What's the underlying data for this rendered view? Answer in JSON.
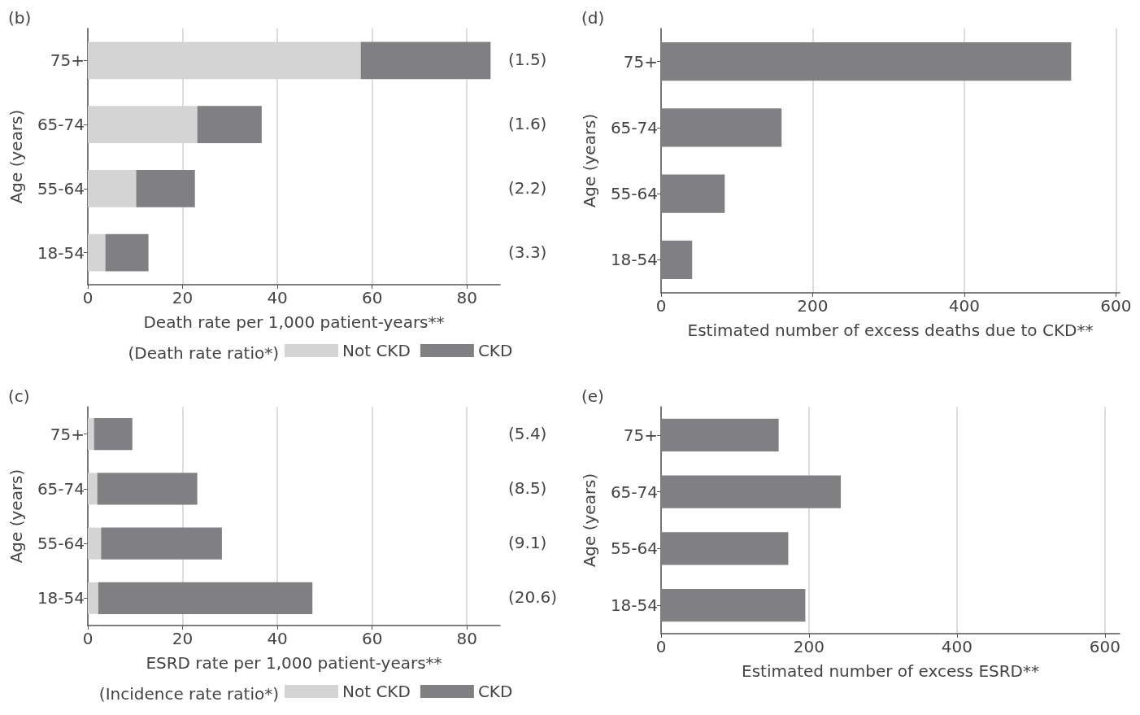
{
  "chart_data": [
    {
      "type": "bar",
      "title": "(b)",
      "orientation": "horizontal",
      "stacked": true,
      "categories": [
        "75+",
        "65-74",
        "55-64",
        "18-54"
      ],
      "series": [
        {
          "name": "Not CKD",
          "color": "#d4d4d5",
          "values": [
            57.6,
            23.1,
            10.2,
            3.7
          ]
        },
        {
          "name": "CKD",
          "color": "#808083",
          "values": [
            27.4,
            13.6,
            12.4,
            9.1
          ]
        }
      ],
      "xlim": [
        0,
        87
      ],
      "xticks": [
        0,
        20,
        40,
        60,
        80
      ],
      "grid": "x",
      "legend": "bottom",
      "legend_title": "(Death rate ratio*)",
      "xlabel": "Death rate per 1,000 patient-years**",
      "ylabel": "Age (years)",
      "annotations": [
        "(1.5)",
        "(1.6)",
        "(2.2)",
        "(3.3)"
      ]
    },
    {
      "type": "bar",
      "title": "(d)",
      "orientation": "horizontal",
      "categories": [
        "75+",
        "65-74",
        "55-64",
        "18-54"
      ],
      "series": [
        {
          "color": "#808083",
          "values": [
            541,
            159,
            84,
            41
          ]
        }
      ],
      "xlim": [
        0,
        605
      ],
      "xticks": [
        0,
        200,
        400,
        600
      ],
      "grid": "x",
      "xlabel": "Estimated number of excess deaths due to CKD**",
      "ylabel": "Age (years)"
    },
    {
      "type": "bar",
      "title": "(c)",
      "orientation": "horizontal",
      "stacked": true,
      "categories": [
        "75+",
        "65-74",
        "55-64",
        "18-54"
      ],
      "series": [
        {
          "name": "Not CKD",
          "color": "#d4d4d5",
          "values": [
            1.3,
            2.0,
            2.8,
            2.2
          ]
        },
        {
          "name": "CKD",
          "color": "#808083",
          "values": [
            8.1,
            21.1,
            25.5,
            45.2
          ]
        }
      ],
      "xlim": [
        0,
        87
      ],
      "xticks": [
        0,
        20,
        40,
        60,
        80
      ],
      "grid": "x",
      "legend": "bottom",
      "legend_title": "(Incidence rate ratio*)",
      "xlabel": "ESRD rate per 1,000 patient-years**",
      "ylabel": "Age (years)",
      "annotations": [
        "(5.4)",
        "(8.5)",
        "(9.1)",
        "(20.6)"
      ]
    },
    {
      "type": "bar",
      "title": "(e)",
      "orientation": "horizontal",
      "categories": [
        "75+",
        "65-74",
        "55-64",
        "18-54"
      ],
      "series": [
        {
          "color": "#808083",
          "values": [
            159,
            243,
            172,
            195
          ]
        }
      ],
      "xlim": [
        0,
        620
      ],
      "xticks": [
        0,
        200,
        400,
        600
      ],
      "grid": "x",
      "xlabel": "Estimated number of excess ESRD**",
      "ylabel": "Age (years)"
    }
  ]
}
